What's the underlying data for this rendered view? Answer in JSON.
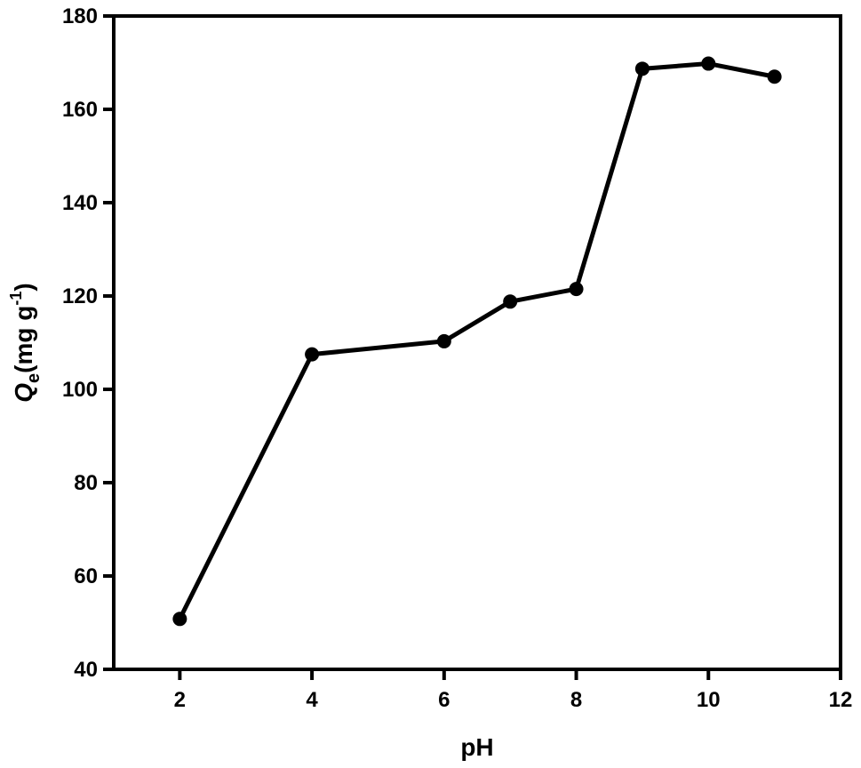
{
  "chart_data": {
    "type": "line",
    "title": "",
    "xlabel": "pH",
    "ylabel": {
      "symbol": "Q",
      "subscript": "e",
      "unit_prefix": "(mg g",
      "superscript": "-1",
      "unit_suffix": ")"
    },
    "xlim": [
      1,
      12
    ],
    "ylim": [
      40,
      180
    ],
    "xticks": [
      2,
      4,
      6,
      8,
      10,
      12
    ],
    "yticks": [
      40,
      60,
      80,
      100,
      120,
      140,
      160,
      180
    ],
    "xtick_labels": [
      "2",
      "4",
      "6",
      "8",
      "10",
      "12"
    ],
    "ytick_labels": [
      "40",
      "60",
      "80",
      "100",
      "120",
      "140",
      "160",
      "180"
    ],
    "grid": false,
    "legend": "none",
    "series": [
      {
        "x": [
          2,
          4,
          6,
          7,
          8,
          9,
          10,
          11
        ],
        "y": [
          50.8,
          107.5,
          110.3,
          118.8,
          121.5,
          168.7,
          169.8,
          167.0
        ],
        "color": "#000000",
        "marker": "circle"
      }
    ]
  }
}
